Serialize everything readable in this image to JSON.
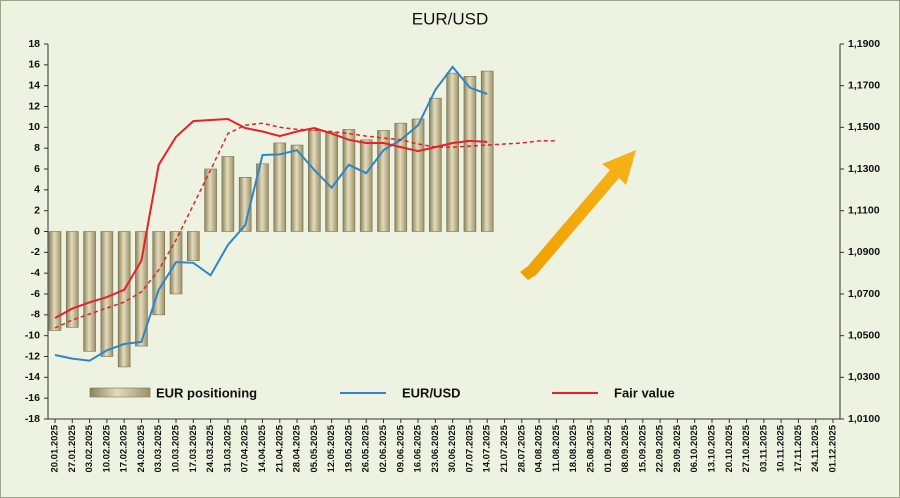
{
  "chart_data": {
    "type": "combo",
    "title": "EUR/USD",
    "categories": [
      "20.01.2025",
      "27.01.2025",
      "03.02.2025",
      "10.02.2025",
      "17.02.2025",
      "24.02.2025",
      "03.03.2025",
      "10.03.2025",
      "17.03.2025",
      "24.03.2025",
      "31.03.2025",
      "07.04.2025",
      "14.04.2025",
      "21.04.2025",
      "28.04.2025",
      "05.05.2025",
      "12.05.2025",
      "19.05.2025",
      "26.05.2025",
      "02.06.2025",
      "09.06.2025",
      "16.06.2025",
      "23.06.2025",
      "30.06.2025",
      "07.07.2025",
      "14.07.2025",
      "21.07.2025",
      "28.07.2025",
      "04.08.2025",
      "11.08.2025",
      "18.08.2025",
      "25.08.2025",
      "01.09.2025",
      "08.09.2025",
      "15.09.2025",
      "22.09.2025",
      "29.09.2025",
      "06.10.2025",
      "13.10.2025",
      "20.10.2025",
      "27.10.2025",
      "03.11.2025",
      "10.11.2025",
      "17.11.2025",
      "24.11.2025",
      "01.12.2025"
    ],
    "ylim": [
      -18,
      18
    ],
    "yticks": [
      -18,
      -16,
      -14,
      -12,
      -10,
      -8,
      -6,
      -4,
      -2,
      0,
      2,
      4,
      6,
      8,
      10,
      12,
      14,
      16,
      18
    ],
    "y2lim": [
      1.01,
      1.19
    ],
    "y2ticks": [
      {
        "value": 1.01,
        "label": "1,0100"
      },
      {
        "value": 1.03,
        "label": "1,0300"
      },
      {
        "value": 1.05,
        "label": "1,0500"
      },
      {
        "value": 1.07,
        "label": "1,0700"
      },
      {
        "value": 1.09,
        "label": "1,0900"
      },
      {
        "value": 1.11,
        "label": "1,1100"
      },
      {
        "value": 1.13,
        "label": "1,1300"
      },
      {
        "value": 1.15,
        "label": "1,1500"
      },
      {
        "value": 1.17,
        "label": "1,1700"
      },
      {
        "value": 1.19,
        "label": "1,1900"
      }
    ],
    "series": [
      {
        "name": "EUR positioning",
        "type": "bar",
        "color": "#c4b98f",
        "values": [
          -9.5,
          -9.2,
          -11.5,
          -12,
          -13,
          -11,
          -8,
          -6,
          -2.8,
          6,
          7.2,
          5.2,
          6.5,
          8.5,
          8.3,
          9.7,
          9.5,
          9.8,
          8.8,
          9.7,
          10.4,
          10.8,
          12.8,
          15.2,
          14.9,
          15.4,
          null,
          null,
          null,
          null,
          null,
          null,
          null,
          null,
          null,
          null,
          null,
          null,
          null,
          null,
          null,
          null,
          null,
          null,
          null,
          null
        ]
      },
      {
        "name": "EUR/USD",
        "type": "line",
        "axis": "y2",
        "color": "#2e86c8",
        "values": [
          1.0407,
          1.039,
          1.038,
          1.043,
          1.046,
          1.047,
          1.072,
          1.0853,
          1.085,
          1.079,
          1.0935,
          1.103,
          1.1367,
          1.137,
          1.139,
          1.1295,
          1.121,
          1.132,
          1.128,
          1.139,
          1.144,
          1.151,
          1.168,
          1.179,
          1.169,
          1.166,
          null,
          null,
          null,
          null,
          null,
          null,
          null,
          null,
          null,
          null,
          null,
          null,
          null,
          null,
          null,
          null,
          null,
          null,
          null,
          null
        ]
      },
      {
        "name": "Fair value",
        "type": "line",
        "axis": "y2",
        "color": "#e8202a",
        "values": [
          1.0585,
          1.063,
          1.066,
          1.0685,
          1.072,
          1.086,
          1.132,
          1.1454,
          1.153,
          1.1535,
          1.154,
          1.1497,
          1.148,
          1.1458,
          1.148,
          1.1497,
          1.147,
          1.144,
          1.1425,
          1.1425,
          1.1405,
          1.1386,
          1.1405,
          1.1425,
          1.1435,
          1.143,
          null,
          null,
          null,
          null,
          null,
          null,
          null,
          null,
          null,
          null,
          null,
          null,
          null,
          null,
          null,
          null,
          null,
          null,
          null,
          null
        ]
      },
      {
        "type": "line",
        "axis": "y2",
        "color": "#e8202a",
        "dash": true,
        "values": [
          1.0537,
          1.0575,
          1.0604,
          1.0633,
          1.0661,
          1.071,
          1.0815,
          1.0959,
          1.1127,
          1.1295,
          1.147,
          1.151,
          1.152,
          1.15,
          1.149,
          1.1487,
          1.148,
          1.147,
          1.1458,
          1.1449,
          1.144,
          1.142,
          1.1405,
          1.1405,
          1.141,
          1.1415,
          1.142,
          1.1425,
          1.1435,
          1.1435,
          null,
          null,
          null,
          null,
          null,
          null,
          null,
          null,
          null,
          null,
          null,
          null,
          null,
          null,
          null,
          null
        ]
      }
    ]
  }
}
